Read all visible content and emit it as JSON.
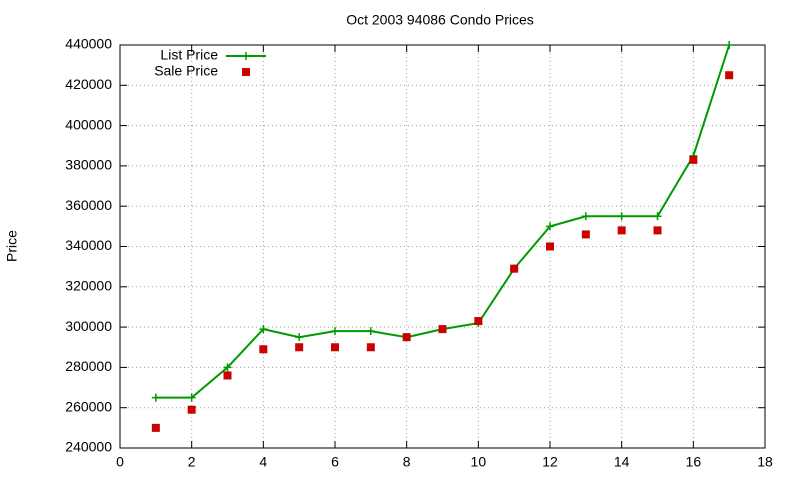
{
  "chart_data": {
    "type": "line",
    "title": "Oct 2003 94086 Condo Prices",
    "y_label": "Price",
    "x": [
      1,
      2,
      3,
      4,
      5,
      6,
      7,
      8,
      9,
      10,
      11,
      12,
      13,
      14,
      15,
      16,
      17
    ],
    "series": [
      {
        "name": "List Price",
        "color": "#009900",
        "style": "linespoints",
        "values": [
          265000,
          265000,
          280000,
          299000,
          295000,
          298000,
          298000,
          295000,
          299000,
          302000,
          329000,
          350000,
          355000,
          355000,
          355000,
          385000,
          440000
        ]
      },
      {
        "name": "Sale Price",
        "color": "#cc0000",
        "style": "points",
        "values": [
          250000,
          259000,
          276000,
          289000,
          290000,
          290000,
          290000,
          295000,
          299000,
          303000,
          329000,
          340000,
          346000,
          348000,
          348000,
          383000,
          425000
        ]
      }
    ],
    "xlim": [
      0,
      18
    ],
    "xticks": [
      0,
      2,
      4,
      6,
      8,
      10,
      12,
      14,
      16,
      18
    ],
    "ylim": [
      240000,
      440000
    ],
    "yticks": [
      240000,
      260000,
      280000,
      300000,
      320000,
      340000,
      360000,
      380000,
      400000,
      420000,
      440000
    ],
    "grid": true,
    "legend": "top-left"
  }
}
